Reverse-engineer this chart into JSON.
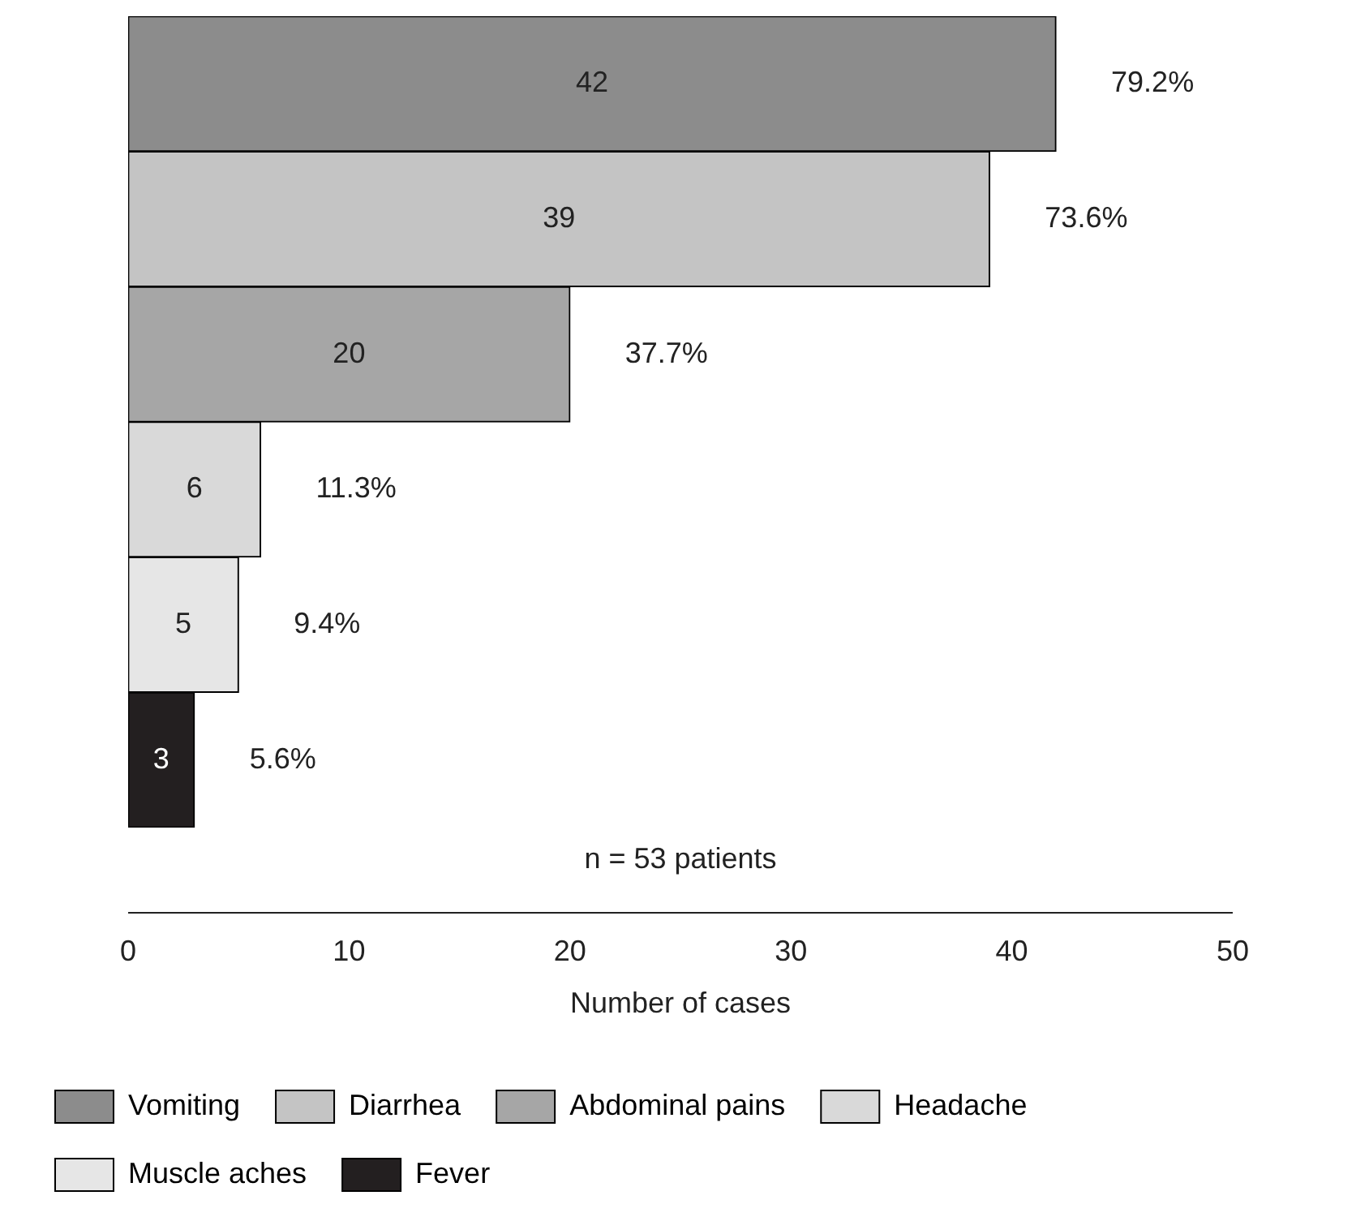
{
  "chart_data": {
    "type": "bar",
    "orientation": "horizontal",
    "stacked": true,
    "categories": [
      null,
      null,
      null,
      null,
      null,
      null
    ],
    "xlabel": "Number of cases",
    "xlim": [
      0,
      50
    ],
    "xticks": [
      0,
      10,
      20,
      30,
      40,
      50
    ],
    "grid": false,
    "legend": "bottom",
    "data_labels": true,
    "annotations": [
      "n = 53 patients",
      {
        "text": "79.2%",
        "x": 42
      },
      {
        "text": "73.6%",
        "x": 39
      },
      {
        "text": "37.7%",
        "x": 20
      },
      {
        "text": "11.3%",
        "x": 6
      },
      {
        "text": "9.4%",
        "x": 5
      },
      {
        "text": "5.6%",
        "x": 3
      }
    ],
    "series": [
      {
        "name": "Vomiting",
        "color": "#8c8c8c",
        "values": [
          42,
          null,
          null,
          null,
          null,
          null
        ]
      },
      {
        "name": "Diarrhea",
        "color": "#c4c4c4",
        "values": [
          null,
          39,
          null,
          null,
          null,
          null
        ]
      },
      {
        "name": "Abdominal pains",
        "color": "#a6a6a6",
        "values": [
          null,
          null,
          20,
          null,
          null,
          null
        ]
      },
      {
        "name": "Headache",
        "color": "#d9d9d9",
        "values": [
          null,
          null,
          null,
          6,
          null,
          null
        ]
      },
      {
        "name": "Muscle aches",
        "color": "#e6e6e6",
        "values": [
          null,
          null,
          null,
          null,
          5,
          null
        ]
      },
      {
        "name": "Fever",
        "color": "#231f20",
        "values": [
          null,
          null,
          null,
          null,
          null,
          3
        ]
      }
    ]
  }
}
